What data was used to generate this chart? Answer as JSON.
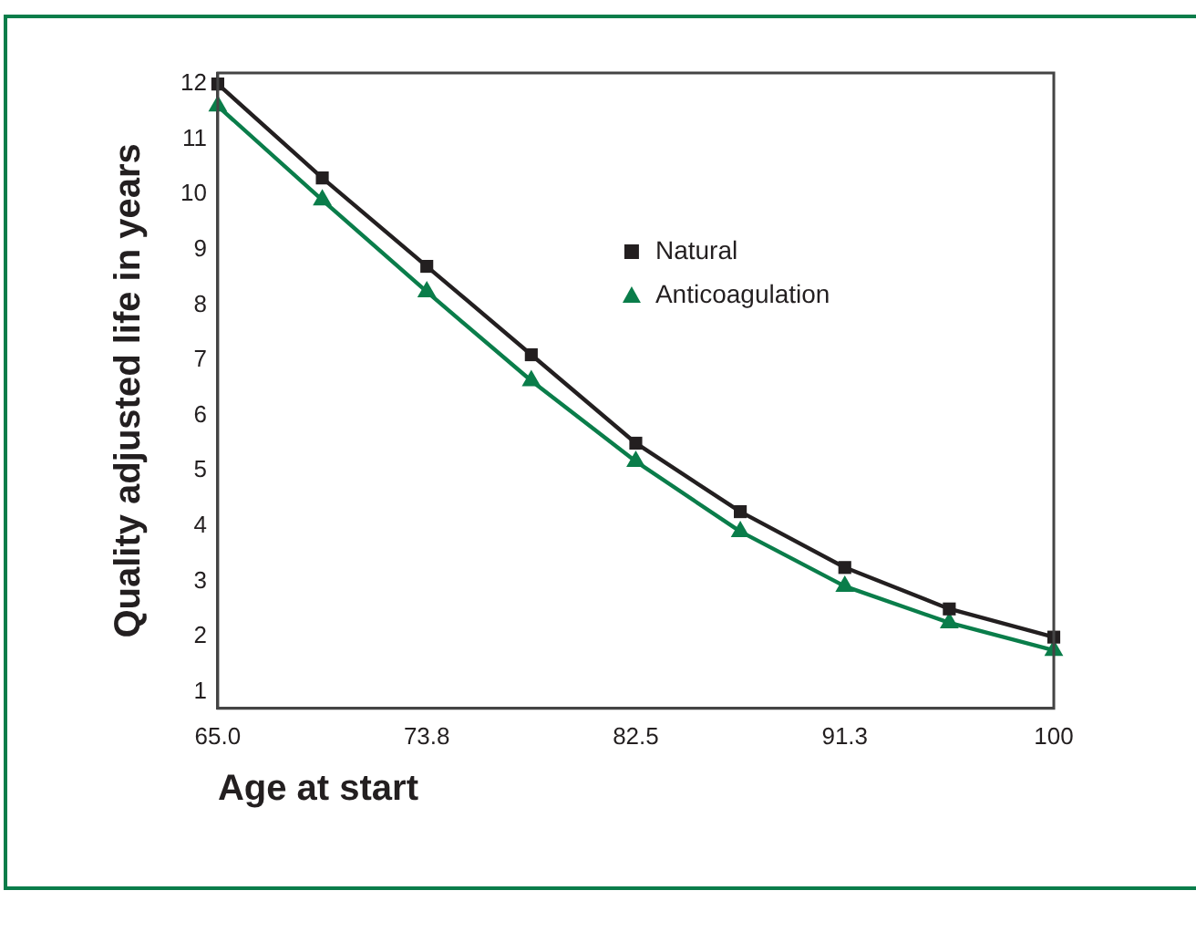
{
  "chart_data": {
    "type": "line",
    "xlabel": "Age at start",
    "ylabel": "Quality adjusted life in years",
    "categories": [
      "65.0",
      null,
      "73.8",
      null,
      "82.5",
      null,
      "91.3",
      null,
      "100"
    ],
    "series": [
      {
        "name": "Natural",
        "color": "#231f20",
        "marker": "square",
        "values": [
          12.0,
          10.3,
          8.7,
          7.1,
          5.5,
          4.26,
          3.25,
          2.5,
          1.99
        ]
      },
      {
        "name": "Anticoagulation",
        "color": "#0a7d4a",
        "marker": "triangle",
        "values": [
          11.6,
          9.9,
          8.24,
          6.63,
          5.17,
          3.9,
          2.91,
          2.25,
          1.75
        ]
      }
    ],
    "ylim": [
      0.7,
      12.2
    ],
    "yticks": [
      1,
      2,
      3,
      4,
      5,
      6,
      7,
      8,
      9,
      10,
      11,
      12
    ],
    "grid": false,
    "legend": "top right",
    "line_style": "solid"
  }
}
